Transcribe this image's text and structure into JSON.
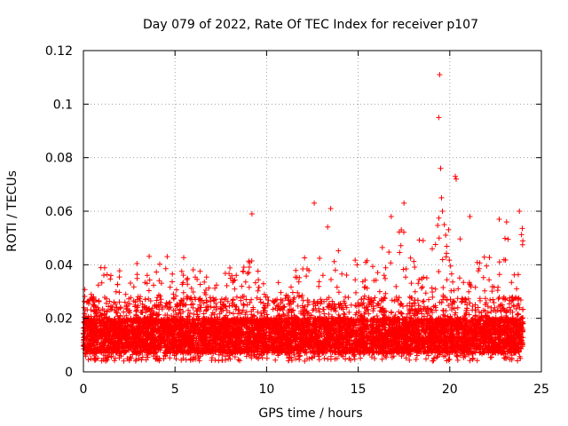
{
  "chart_data": {
    "type": "scatter",
    "title": "Day 079 of 2022, Rate Of TEC Index for receiver p107",
    "xlabel": "GPS time / hours",
    "ylabel": "ROTI / TECUs",
    "xlim": [
      0,
      25
    ],
    "ylim": [
      0,
      0.12
    ],
    "xticks": [
      0,
      5,
      10,
      15,
      20,
      25
    ],
    "xtick_labels": [
      "0",
      "5",
      "10",
      "15",
      "20",
      "25"
    ],
    "yticks": [
      0,
      0.02,
      0.04,
      0.06,
      0.08,
      0.1,
      0.12
    ],
    "ytick_labels": [
      "0",
      "0.02",
      "0.04",
      "0.06",
      "0.08",
      "0.1",
      "0.12"
    ],
    "grid": true,
    "marker": "+",
    "color": "#ff0000",
    "baseline_range": [
      0.007,
      0.02
    ],
    "approx_point_count": 8000,
    "series": [
      {
        "name": "ROTI",
        "envelope": {
          "x": [
            0,
            0.5,
            1,
            1.5,
            2,
            2.5,
            3,
            3.5,
            4,
            4.5,
            5,
            5.5,
            6,
            6.5,
            7,
            7.5,
            8,
            8.5,
            9,
            9.5,
            10,
            10.5,
            11,
            11.5,
            12,
            12.5,
            13,
            13.5,
            14,
            14.5,
            15,
            15.5,
            16,
            16.5,
            17,
            17.5,
            18,
            18.5,
            19,
            19.5,
            20,
            20.5,
            21,
            21.5,
            22,
            22.5,
            23,
            23.5,
            24
          ],
          "y": [
            0.032,
            0.03,
            0.045,
            0.036,
            0.04,
            0.042,
            0.047,
            0.043,
            0.045,
            0.046,
            0.038,
            0.044,
            0.04,
            0.038,
            0.036,
            0.038,
            0.04,
            0.036,
            0.047,
            0.044,
            0.03,
            0.034,
            0.032,
            0.036,
            0.046,
            0.05,
            0.045,
            0.06,
            0.046,
            0.04,
            0.044,
            0.042,
            0.05,
            0.048,
            0.052,
            0.055,
            0.05,
            0.058,
            0.06,
            0.058,
            0.053,
            0.05,
            0.052,
            0.048,
            0.045,
            0.042,
            0.05,
            0.055,
            0.058
          ]
        },
        "outliers": [
          {
            "x": 9.2,
            "y": 0.059
          },
          {
            "x": 12.6,
            "y": 0.063
          },
          {
            "x": 13.5,
            "y": 0.061
          },
          {
            "x": 16.8,
            "y": 0.058
          },
          {
            "x": 17.5,
            "y": 0.063
          },
          {
            "x": 19.45,
            "y": 0.111
          },
          {
            "x": 19.4,
            "y": 0.095
          },
          {
            "x": 19.5,
            "y": 0.076
          },
          {
            "x": 19.55,
            "y": 0.065
          },
          {
            "x": 19.6,
            "y": 0.06
          },
          {
            "x": 19.7,
            "y": 0.055
          },
          {
            "x": 20.3,
            "y": 0.073
          },
          {
            "x": 20.35,
            "y": 0.072
          },
          {
            "x": 21.1,
            "y": 0.058
          },
          {
            "x": 22.7,
            "y": 0.057
          },
          {
            "x": 23.1,
            "y": 0.056
          },
          {
            "x": 23.8,
            "y": 0.06
          }
        ]
      }
    ]
  }
}
